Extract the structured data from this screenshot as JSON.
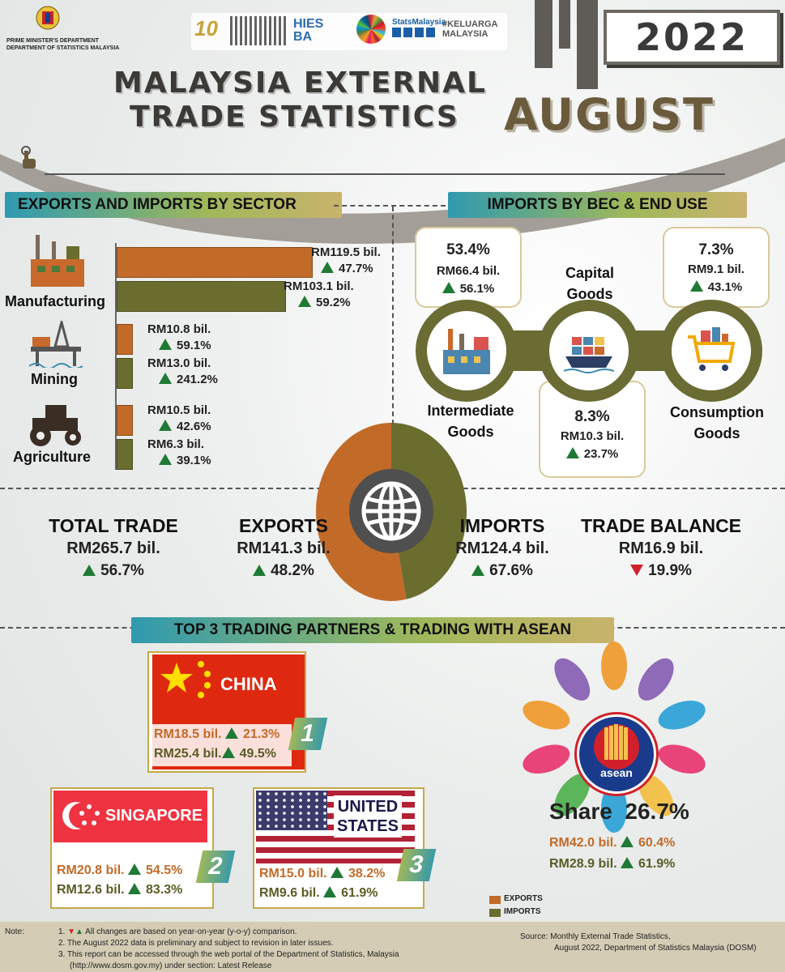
{
  "header": {
    "dept_line1": "PRIME MINISTER'S DEPARTMENT",
    "dept_line2": "DEPARTMENT OF STATISTICS MALAYSIA",
    "title_line1": "MALAYSIA EXTERNAL",
    "title_line2": "TRADE STATISTICS",
    "month": "AUGUST",
    "year": "2022",
    "social_label": "StatsMalaysia",
    "campaign": "#KELUARGA MALAYSIA",
    "hies": "HIES BA"
  },
  "sections": {
    "sector_title": "EXPORTS AND IMPORTS BY SECTOR",
    "bec_title": "IMPORTS BY BEC & END USE",
    "partners_title": "TOP 3 TRADING PARTNERS & TRADING WITH ASEAN"
  },
  "chart_data": [
    {
      "type": "bar",
      "categories": [
        "Manufacturing",
        "Mining",
        "Agriculture"
      ],
      "series": [
        {
          "name": "EXPORTS",
          "values": [
            119.5,
            10.8,
            10.5
          ],
          "labels": [
            "RM119.5 bil.",
            "RM10.8 bil.",
            "RM10.5 bil."
          ],
          "changes": [
            "47.7%",
            "59.1%",
            "42.6%"
          ]
        },
        {
          "name": "IMPORTS",
          "values": [
            103.1,
            13.0,
            6.3
          ],
          "labels": [
            "RM103.1 bil.",
            "RM13.0 bil.",
            "RM6.3 bil."
          ],
          "changes": [
            "59.2%",
            "241.2%",
            "39.1%"
          ]
        }
      ]
    },
    {
      "type": "pie",
      "labels": [
        "EXPORTS",
        "IMPORTS"
      ],
      "values": [
        141.3,
        124.4
      ],
      "colors": [
        "#c26b29",
        "#6b6d2f"
      ]
    }
  ],
  "bec": {
    "intermediate": {
      "name": "Intermediate Goods",
      "pct": "53.4%",
      "value": "RM66.4 bil.",
      "change": "56.1%"
    },
    "capital": {
      "name": "Capital Goods",
      "pct": "8.3%",
      "value": "RM10.3 bil.",
      "change": "23.7%"
    },
    "consumption": {
      "name": "Consumption Goods",
      "pct": "7.3%",
      "value": "RM9.1 bil.",
      "change": "43.1%"
    }
  },
  "totals": {
    "total_trade": {
      "label": "TOTAL TRADE",
      "value": "RM265.7 bil.",
      "change": "56.7%",
      "direction": "up"
    },
    "exports": {
      "label": "EXPORTS",
      "value": "RM141.3 bil.",
      "change": "48.2%",
      "direction": "up"
    },
    "imports": {
      "label": "IMPORTS",
      "value": "RM124.4 bil.",
      "change": "67.6%",
      "direction": "up"
    },
    "trade_balance": {
      "label": "TRADE BALANCE",
      "value": "RM16.9 bil.",
      "change": "19.9%",
      "direction": "down"
    }
  },
  "partners": {
    "china": {
      "name": "CHINA",
      "rank": "1",
      "exports": "RM18.5 bil.",
      "exports_change": "21.3%",
      "imports": "RM25.4 bil.",
      "imports_change": "49.5%"
    },
    "singapore": {
      "name": "SINGAPORE",
      "rank": "2",
      "exports": "RM20.8 bil.",
      "exports_change": "54.5%",
      "imports": "RM12.6 bil.",
      "imports_change": "83.3%"
    },
    "us": {
      "name_line1": "UNITED",
      "name_line2": "STATES",
      "rank": "3",
      "exports": "RM15.0 bil.",
      "exports_change": "38.2%",
      "imports": "RM9.6 bil.",
      "imports_change": "61.9%"
    }
  },
  "asean": {
    "share_label": "Share",
    "share_value": "26.7%",
    "logo_text": "asean",
    "exports": "RM42.0 bil.",
    "exports_change": "60.4%",
    "imports": "RM28.9 bil.",
    "imports_change": "61.9%"
  },
  "legend": {
    "exports": "EXPORTS",
    "imports": "IMPORTS"
  },
  "notes": {
    "label": "Note:",
    "n1": "All changes are based on year-on-year (y-o-y) comparison.",
    "n2": "The August 2022 data is preliminary and subject to revision in later issues.",
    "n3": "This report can be accessed through the web portal of the Department of Statistics, Malaysia",
    "n3b": "(http://www.dosm.gov.my) under section: Latest Release",
    "source1": "Source:  Monthly External Trade Statistics,",
    "source2": "August 2022, Department of Statistics Malaysia (DOSM)"
  },
  "colors": {
    "exports": "#c26b29",
    "imports": "#6b6d2f",
    "up": "#1e7a35",
    "down": "#d1202b"
  }
}
